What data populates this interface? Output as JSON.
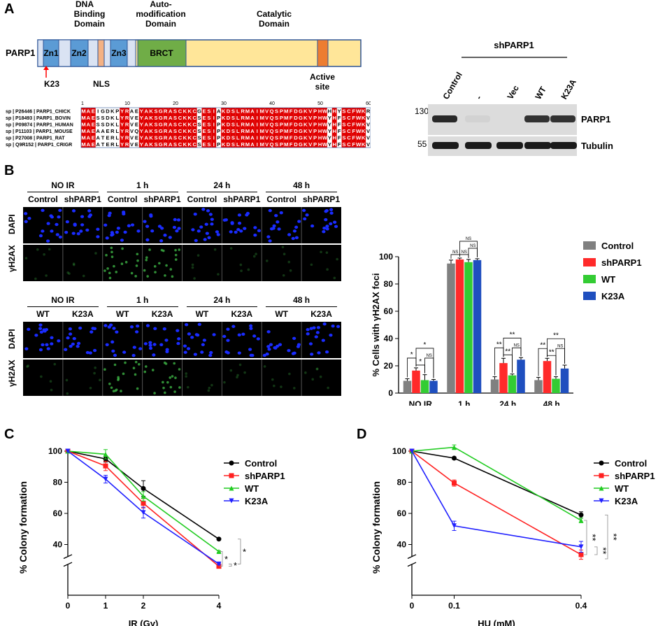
{
  "panels": {
    "a": "A",
    "b": "B",
    "c": "C",
    "d": "D"
  },
  "domain_map": {
    "protein": "PARP1",
    "domain_labels": [
      "DNA Binding Domain",
      "Auto-modification Domain",
      "Catalytic Domain"
    ],
    "segments": [
      "Zn1",
      "Zn2",
      "Zn3",
      "BRCT"
    ],
    "markers": {
      "k23": "K23",
      "nls": "NLS",
      "active_site": "Active site"
    },
    "colors": {
      "zn": "#5b9bd5",
      "brct": "#70ad47",
      "catalytic": "#ffe699",
      "nls": "#f4b183",
      "active": "#ed7d31",
      "light": "#dae3f3"
    }
  },
  "alignment": {
    "ruler": [
      "1",
      "10",
      "20",
      "30",
      "40",
      "50",
      "60"
    ],
    "rows": [
      {
        "id": "sp | P26446 | PARP1_CHICK",
        "seq": "MAEIGDKPYRAEYAKSGRASCKKCGESIAKDSLRMAIMVQSPMFDGKVPHWHHYSCFWKR"
      },
      {
        "id": "sp | P18493 | PARP1_BOVIN",
        "seq": "MAESSDKLYRVEYAKSGRASCKKCSESIPKDSLRMAIMVQSPMFDGKVPHWYHFSCFWKV"
      },
      {
        "id": "sp | P09874 | PARP1_HUMAN",
        "seq": "MAESSDKLYRVEYAKSGRASCKKCSESIPKDSLRMAIMVQSPMFDGKVPHWYHFSCFWKV"
      },
      {
        "id": "sp | P11103 | PARP1_MOUSE",
        "seq": "MAEAAERLYRVQYAKSGRASCKKCSESIPKDSLRMAIMVQSPMFDGKVPHWYHFSCFWKV"
      },
      {
        "id": "sp | P27008 | PARP1_RAT",
        "seq": "MAEATERLYRVEYAKSGRASCKKCSESIPKDSLRMAIMVQSPMFDGKVPHWYHFSCFWKV"
      },
      {
        "id": "sp | Q9R152 | PARP1_CRIGR",
        "seq": "MAEATERLYRVEYAKSGRASCKKCSESIPKDSLRMAIMVQSPMFDGKVPHWYHFSCFWKV"
      }
    ]
  },
  "western": {
    "group": "shPARP1",
    "lanes": [
      "Control",
      "-",
      "Vec",
      "WT",
      "K23A"
    ],
    "markers": [
      "130",
      "55"
    ],
    "bands": [
      "PARP1",
      "Tubulin"
    ],
    "parp1_intensity": [
      0.9,
      0.05,
      0.0,
      0.85,
      0.85
    ],
    "tubulin_intensity": [
      1,
      1,
      1,
      1,
      1
    ]
  },
  "microscopy": {
    "top": {
      "timepoints": [
        "NO IR",
        "1 h",
        "24 h",
        "48 h"
      ],
      "conditions": [
        "Control",
        "shPARP1",
        "Control",
        "shPARP1",
        "Control",
        "shPARP1",
        "Control",
        "shPARP1"
      ],
      "rows": [
        "DAPI",
        "γH2AX"
      ]
    },
    "bottom": {
      "timepoints": [
        "NO IR",
        "1 h",
        "24 h",
        "48 h"
      ],
      "conditions": [
        "WT",
        "K23A",
        "WT",
        "K23A",
        "WT",
        "K23A",
        "WT",
        "K23A"
      ],
      "rows": [
        "DAPI",
        "γH2AX"
      ]
    },
    "colors": {
      "dapi": "#1a2cff",
      "h2ax": "#3cb043"
    }
  },
  "chart_data": [
    {
      "id": "B",
      "type": "bar",
      "title": "",
      "xlabel": "",
      "ylabel": "% Cells with γH2AX foci",
      "ylim": [
        0,
        100
      ],
      "yticks": [
        "0",
        "20",
        "40",
        "60",
        "80",
        "100"
      ],
      "categories": [
        "NO IR",
        "1 h",
        "24 h",
        "48 h"
      ],
      "series": [
        {
          "name": "Control",
          "color": "#808080",
          "values": [
            9,
            95,
            10,
            9.5
          ],
          "errors": [
            1.5,
            2.5,
            2,
            2
          ]
        },
        {
          "name": "shPARP1",
          "color": "#ff2a2a",
          "values": [
            16.5,
            98,
            22,
            23.5
          ],
          "errors": [
            2,
            1,
            3.5,
            2
          ]
        },
        {
          "name": "WT",
          "color": "#33cc33",
          "values": [
            9.5,
            96,
            13,
            10.5
          ],
          "errors": [
            4,
            2,
            1,
            1.5
          ]
        },
        {
          "name": "K23A",
          "color": "#1f4fbf",
          "values": [
            9,
            97.5,
            24.5,
            18
          ],
          "errors": [
            1,
            1,
            1.5,
            2.5
          ]
        }
      ],
      "significance": {
        "NO IR": [
          "*",
          "*",
          "*",
          "NS"
        ],
        "1 h": [
          "NS",
          "NS",
          "NS",
          "NS"
        ],
        "24 h": [
          "**",
          "**",
          "**",
          "NS"
        ],
        "48 h": [
          "**",
          "**",
          "**",
          "NS"
        ]
      },
      "legend": "top-right"
    },
    {
      "id": "C",
      "type": "line",
      "xlabel": "IR (Gy)",
      "ylabel": "% Colony formation",
      "x": [
        0,
        1,
        2,
        4
      ],
      "xticks": [
        "0",
        "1",
        "2",
        "4"
      ],
      "ylim": [
        20,
        100
      ],
      "yticks": [
        "40",
        "60",
        "80",
        "100"
      ],
      "series": [
        {
          "name": "Control",
          "color": "#000000",
          "marker": "circle",
          "values": [
            100,
            95,
            76,
            43.5
          ],
          "errors": [
            0,
            2,
            5,
            0.5
          ]
        },
        {
          "name": "shPARP1",
          "color": "#ff2020",
          "marker": "square",
          "values": [
            100,
            90.5,
            66.5,
            26
          ],
          "errors": [
            0,
            3,
            3,
            0.8
          ]
        },
        {
          "name": "WT",
          "color": "#22cc22",
          "marker": "triangle",
          "values": [
            100,
            98,
            71,
            35.5
          ],
          "errors": [
            0,
            3,
            3,
            0.5
          ]
        },
        {
          "name": "K23A",
          "color": "#2020ff",
          "marker": "triangle-down",
          "values": [
            100,
            82,
            60.5,
            27.5
          ],
          "errors": [
            0,
            2.5,
            3.5,
            0.5
          ]
        }
      ],
      "significance": [
        "*",
        "*",
        "*"
      ],
      "legend": "right"
    },
    {
      "id": "D",
      "type": "line",
      "xlabel": "HU (mM)",
      "ylabel": "% Colony formation",
      "x": [
        0,
        0.1,
        0.4
      ],
      "xticks": [
        "0",
        "0.1",
        "0.4"
      ],
      "ylim": [
        20,
        100
      ],
      "yticks": [
        "40",
        "60",
        "80",
        "100"
      ],
      "series": [
        {
          "name": "Control",
          "color": "#000000",
          "marker": "circle",
          "values": [
            100,
            95.5,
            59
          ],
          "errors": [
            0,
            0.8,
            2
          ]
        },
        {
          "name": "shPARP1",
          "color": "#ff2020",
          "marker": "square",
          "values": [
            100,
            79.5,
            33.5
          ],
          "errors": [
            0,
            2,
            3
          ]
        },
        {
          "name": "WT",
          "color": "#22cc22",
          "marker": "triangle",
          "values": [
            100,
            102.5,
            55.5
          ],
          "errors": [
            0,
            1.5,
            1.5
          ]
        },
        {
          "name": "K23A",
          "color": "#2020ff",
          "marker": "triangle-down",
          "values": [
            100,
            52,
            38.5
          ],
          "errors": [
            0,
            3,
            3.5
          ]
        }
      ],
      "significance": [
        "**",
        "**",
        "**"
      ],
      "legend": "right"
    }
  ]
}
